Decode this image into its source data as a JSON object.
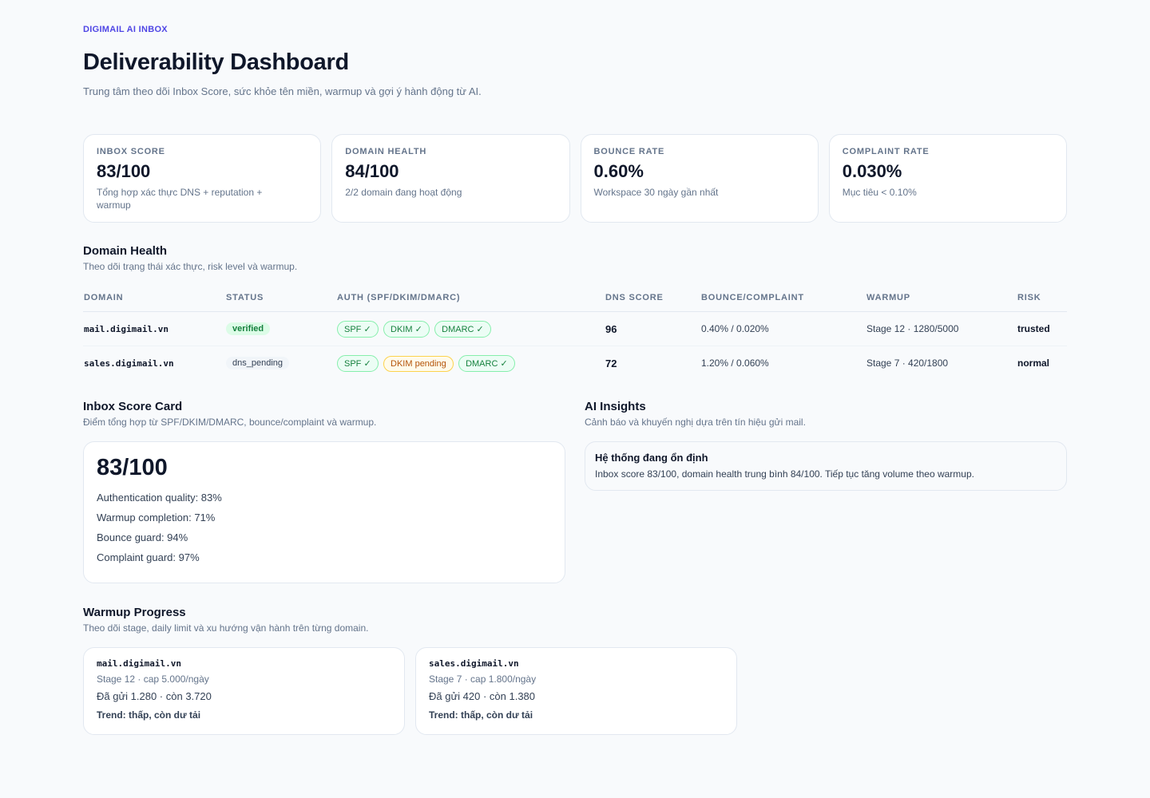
{
  "header": {
    "eyebrow": "DIGIMAIL AI INBOX",
    "title": "Deliverability Dashboard",
    "subtitle": "Trung tâm theo dõi Inbox Score, sức khỏe tên miền, warmup và gợi ý hành động từ AI."
  },
  "kpis": [
    {
      "label": "INBOX SCORE",
      "value": "83/100",
      "desc": "Tổng hợp xác thực DNS + reputation + warmup"
    },
    {
      "label": "DOMAIN HEALTH",
      "value": "84/100",
      "desc": "2/2 domain đang hoạt động"
    },
    {
      "label": "BOUNCE RATE",
      "value": "0.60%",
      "desc": "Workspace 30 ngày gần nhất"
    },
    {
      "label": "COMPLAINT RATE",
      "value": "0.030%",
      "desc": "Mục tiêu < 0.10%"
    }
  ],
  "domain_health": {
    "title": "Domain Health",
    "desc": "Theo dõi trạng thái xác thực, risk level và warmup.",
    "columns": [
      "DOMAIN",
      "STATUS",
      "AUTH (SPF/DKIM/DMARC)",
      "DNS SCORE",
      "BOUNCE/COMPLAINT",
      "WARMUP",
      "RISK"
    ],
    "rows": [
      {
        "domain": "mail.digimail.vn",
        "status": "verified",
        "spf": "SPF ✓",
        "dkim": "DKIM ✓",
        "dmarc": "DMARC ✓",
        "dns": "96",
        "bounce": "0.40% / 0.020%",
        "warmup": "Stage 12 · 1280/5000",
        "risk": "trusted"
      },
      {
        "domain": "sales.digimail.vn",
        "status": "dns_pending",
        "spf": "SPF ✓",
        "dkim": "DKIM pending",
        "dmarc": "DMARC ✓",
        "dns": "72",
        "bounce": "1.20% / 0.060%",
        "warmup": "Stage 7 · 420/1800",
        "risk": "normal"
      }
    ]
  },
  "inbox_score_card": {
    "title": "Inbox Score Card",
    "desc": "Điểm tổng hợp từ SPF/DKIM/DMARC, bounce/complaint và warmup.",
    "value": "83/100",
    "lines": [
      "Authentication quality: 83%",
      "Warmup completion: 71%",
      "Bounce guard: 94%",
      "Complaint guard: 97%"
    ]
  },
  "ai_insights": {
    "title": "AI Insights",
    "desc": "Cảnh báo và khuyến nghị dựa trên tín hiệu gửi mail.",
    "card_title": "Hệ thống đang ổn định",
    "card_text": "Inbox score 83/100, domain health trung bình 84/100. Tiếp tục tăng volume theo warmup."
  },
  "warmup_progress": {
    "title": "Warmup Progress",
    "desc": "Theo dõi stage, daily limit và xu hướng vận hành trên từng domain.",
    "cards": [
      {
        "domain": "mail.digimail.vn",
        "stage": "Stage 12 · cap 5.000/ngày",
        "sent": "Đã gửi 1.280 · còn 3.720",
        "trend": "Trend: thấp, còn dư tải"
      },
      {
        "domain": "sales.digimail.vn",
        "stage": "Stage 7 · cap 1.800/ngày",
        "sent": "Đã gửi 420 · còn 1.380",
        "trend": "Trend: thấp, còn dư tải"
      }
    ]
  }
}
